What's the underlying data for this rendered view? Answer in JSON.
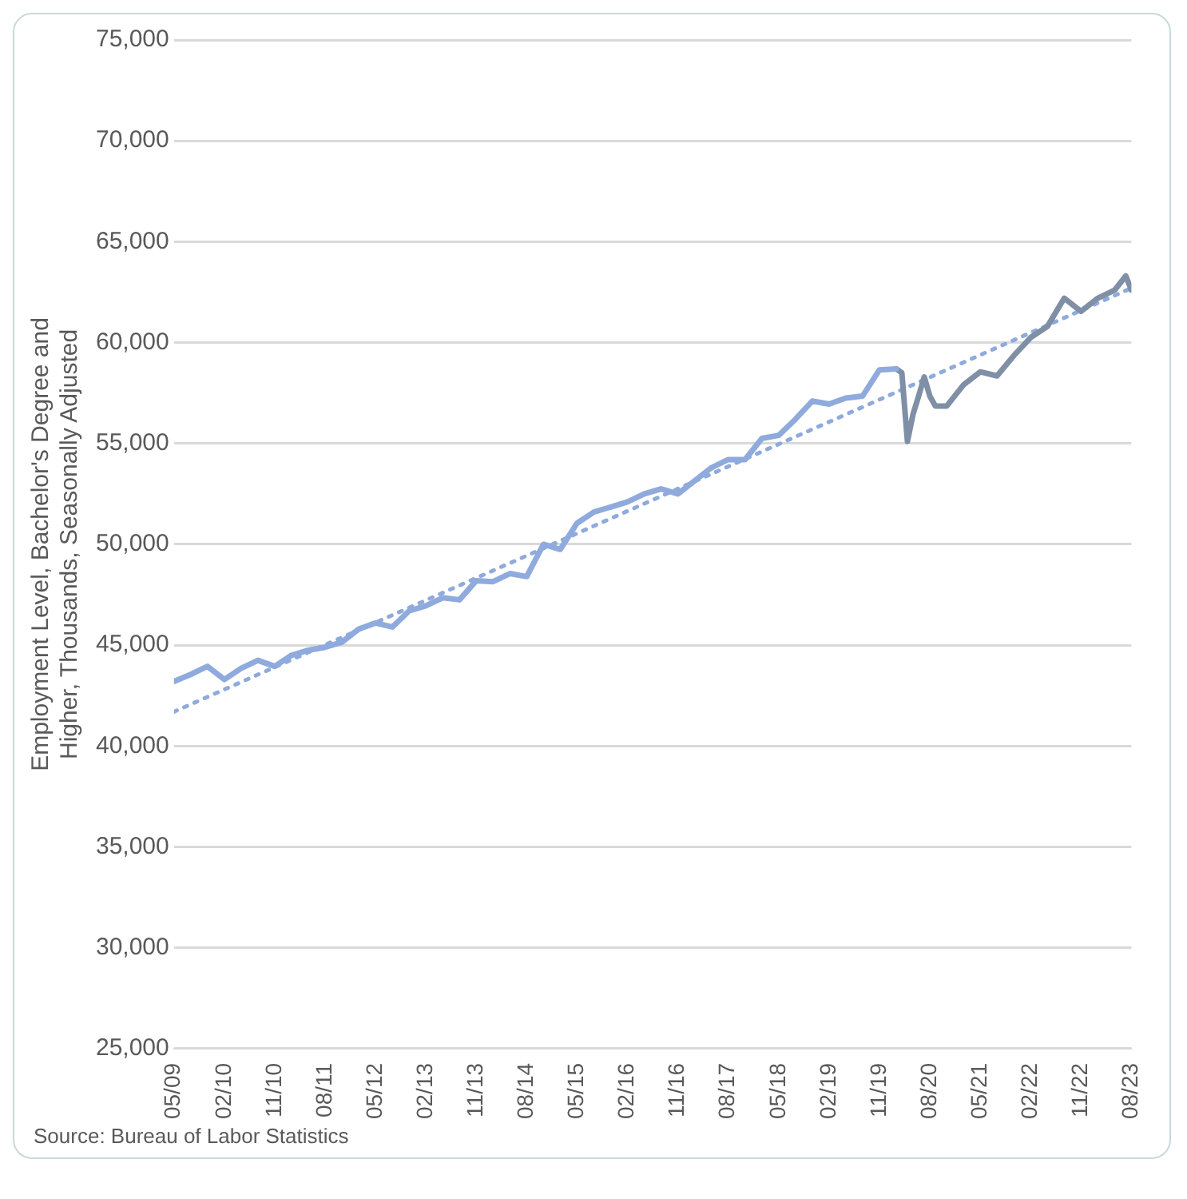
{
  "chart_data": {
    "type": "line",
    "ylabel": "Employment Level, Bachelor's Degree and Higher, Thousands, Seasonally Adjusted",
    "annotations": [
      "Source: Bureau of Labor Statistics"
    ],
    "series": [
      {
        "color": "#8faadc",
        "x": [
          "2009-05",
          "2009-08",
          "2009-11",
          "2010-02",
          "2010-05",
          "2010-08",
          "2010-11",
          "2011-02",
          "2011-05",
          "2011-08",
          "2011-11",
          "2012-02",
          "2012-05",
          "2012-08",
          "2012-11",
          "2013-02",
          "2013-05",
          "2013-08",
          "2013-11",
          "2014-02",
          "2014-05",
          "2014-08",
          "2014-11",
          "2015-02",
          "2015-05",
          "2015-08",
          "2015-11",
          "2016-02",
          "2016-05",
          "2016-08",
          "2016-11",
          "2017-02",
          "2017-05",
          "2017-08",
          "2017-11",
          "2018-02",
          "2018-05",
          "2018-08",
          "2018-11",
          "2019-02",
          "2019-05",
          "2019-08",
          "2019-11",
          "2020-02"
        ],
        "values": [
          43200,
          43550,
          43950,
          43300,
          43850,
          44250,
          43950,
          44500,
          44750,
          44900,
          45150,
          45800,
          46100,
          45900,
          46700,
          46950,
          47350,
          47250,
          48200,
          48150,
          48550,
          48400,
          50000,
          49750,
          51050,
          51600,
          51850,
          52100,
          52500,
          52750,
          52500,
          53150,
          53800,
          54200,
          54200,
          55250,
          55400,
          56200,
          57100,
          56950,
          57250,
          57350,
          58650,
          58700
        ]
      },
      {
        "color": "#7f8fa6",
        "x": [
          "2020-02",
          "2020-03",
          "2020-04",
          "2020-05",
          "2020-06",
          "2020-07",
          "2020-08",
          "2020-09",
          "2020-11",
          "2021-02",
          "2021-05",
          "2021-08",
          "2021-11",
          "2022-02",
          "2022-05",
          "2022-08",
          "2022-11",
          "2023-02",
          "2023-05",
          "2023-07",
          "2023-08"
        ],
        "values": [
          58700,
          58500,
          55100,
          56450,
          57350,
          58300,
          57350,
          56850,
          56850,
          57900,
          58550,
          58350,
          59350,
          60250,
          60800,
          62200,
          61550,
          62200,
          62600,
          63300,
          62600
        ]
      },
      {
        "type": "line",
        "color": "#8faadc",
        "line_style": "dotted",
        "x": [
          "2009-05",
          "2023-08"
        ],
        "values": [
          41700,
          62700
        ]
      }
    ],
    "xlim": [
      "2009-05",
      "2023-08"
    ],
    "xticks": [
      {
        "value": "2009-05",
        "label": "05/09"
      },
      {
        "value": "2010-02",
        "label": "02/10"
      },
      {
        "value": "2010-11",
        "label": "11/10"
      },
      {
        "value": "2011-08",
        "label": "08/11"
      },
      {
        "value": "2012-05",
        "label": "05/12"
      },
      {
        "value": "2013-02",
        "label": "02/13"
      },
      {
        "value": "2013-11",
        "label": "11/13"
      },
      {
        "value": "2014-08",
        "label": "08/14"
      },
      {
        "value": "2015-05",
        "label": "05/15"
      },
      {
        "value": "2016-02",
        "label": "02/16"
      },
      {
        "value": "2016-11",
        "label": "11/16"
      },
      {
        "value": "2017-08",
        "label": "08/17"
      },
      {
        "value": "2018-05",
        "label": "05/18"
      },
      {
        "value": "2019-02",
        "label": "02/19"
      },
      {
        "value": "2019-11",
        "label": "11/19"
      },
      {
        "value": "2020-08",
        "label": "08/20"
      },
      {
        "value": "2021-05",
        "label": "05/21"
      },
      {
        "value": "2022-02",
        "label": "02/22"
      },
      {
        "value": "2022-11",
        "label": "11/22"
      },
      {
        "value": "2023-08",
        "label": "08/23"
      }
    ],
    "ylim": [
      25000,
      75000
    ],
    "yticks": [
      {
        "value": 25000,
        "label": "25,000"
      },
      {
        "value": 30000,
        "label": "30,000"
      },
      {
        "value": 35000,
        "label": "35,000"
      },
      {
        "value": 40000,
        "label": "40,000"
      },
      {
        "value": 45000,
        "label": "45,000"
      },
      {
        "value": 50000,
        "label": "50,000"
      },
      {
        "value": 55000,
        "label": "55,000"
      },
      {
        "value": 60000,
        "label": "60,000"
      },
      {
        "value": 65000,
        "label": "65,000"
      },
      {
        "value": 70000,
        "label": "70,000"
      },
      {
        "value": 75000,
        "label": "75,000"
      }
    ],
    "grid": "y",
    "marker": "none"
  }
}
